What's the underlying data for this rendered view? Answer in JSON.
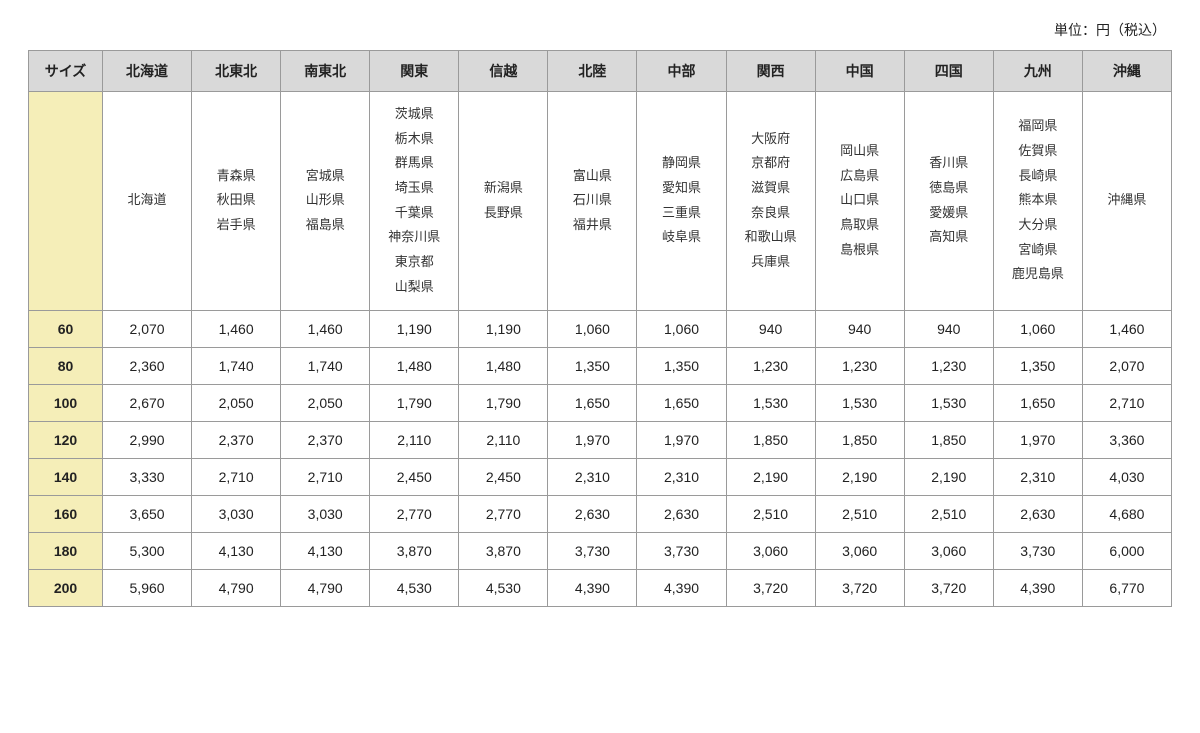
{
  "unit_label": "単位：円（税込）",
  "table": {
    "type": "table",
    "background_color": "#ffffff",
    "border_color": "#9a9a9a",
    "header_bg": "#d9d9d9",
    "size_col_bg": "#f5eeb8",
    "text_color": "#222222",
    "font_size_header": 14,
    "font_size_body": 14,
    "font_size_pref": 13,
    "columns": [
      {
        "key": "size",
        "label": "サイズ"
      },
      {
        "key": "hokkaido",
        "label": "北海道"
      },
      {
        "key": "n_tohoku",
        "label": "北東北"
      },
      {
        "key": "s_tohoku",
        "label": "南東北"
      },
      {
        "key": "kanto",
        "label": "関東"
      },
      {
        "key": "shinetsu",
        "label": "信越"
      },
      {
        "key": "hokuriku",
        "label": "北陸"
      },
      {
        "key": "chubu",
        "label": "中部"
      },
      {
        "key": "kansai",
        "label": "関西"
      },
      {
        "key": "chugoku",
        "label": "中国"
      },
      {
        "key": "shikoku",
        "label": "四国"
      },
      {
        "key": "kyushu",
        "label": "九州"
      },
      {
        "key": "okinawa",
        "label": "沖縄"
      }
    ],
    "prefectures": {
      "size": "",
      "hokkaido": [
        "北海道"
      ],
      "n_tohoku": [
        "青森県",
        "秋田県",
        "岩手県"
      ],
      "s_tohoku": [
        "宮城県",
        "山形県",
        "福島県"
      ],
      "kanto": [
        "茨城県",
        "栃木県",
        "群馬県",
        "埼玉県",
        "千葉県",
        "神奈川県",
        "東京都",
        "山梨県"
      ],
      "shinetsu": [
        "新潟県",
        "長野県"
      ],
      "hokuriku": [
        "富山県",
        "石川県",
        "福井県"
      ],
      "chubu": [
        "静岡県",
        "愛知県",
        "三重県",
        "岐阜県"
      ],
      "kansai": [
        "大阪府",
        "京都府",
        "滋賀県",
        "奈良県",
        "和歌山県",
        "兵庫県"
      ],
      "chugoku": [
        "岡山県",
        "広島県",
        "山口県",
        "鳥取県",
        "島根県"
      ],
      "shikoku": [
        "香川県",
        "徳島県",
        "愛媛県",
        "高知県"
      ],
      "kyushu": [
        "福岡県",
        "佐賀県",
        "長崎県",
        "熊本県",
        "大分県",
        "宮崎県",
        "鹿児島県"
      ],
      "okinawa": [
        "沖縄県"
      ]
    },
    "sizes": [
      "60",
      "80",
      "100",
      "120",
      "140",
      "160",
      "180",
      "200"
    ],
    "prices": [
      [
        "2,070",
        "1,460",
        "1,460",
        "1,190",
        "1,190",
        "1,060",
        "1,060",
        "940",
        "940",
        "940",
        "1,060",
        "1,460"
      ],
      [
        "2,360",
        "1,740",
        "1,740",
        "1,480",
        "1,480",
        "1,350",
        "1,350",
        "1,230",
        "1,230",
        "1,230",
        "1,350",
        "2,070"
      ],
      [
        "2,670",
        "2,050",
        "2,050",
        "1,790",
        "1,790",
        "1,650",
        "1,650",
        "1,530",
        "1,530",
        "1,530",
        "1,650",
        "2,710"
      ],
      [
        "2,990",
        "2,370",
        "2,370",
        "2,110",
        "2,110",
        "1,970",
        "1,970",
        "1,850",
        "1,850",
        "1,850",
        "1,970",
        "3,360"
      ],
      [
        "3,330",
        "2,710",
        "2,710",
        "2,450",
        "2,450",
        "2,310",
        "2,310",
        "2,190",
        "2,190",
        "2,190",
        "2,310",
        "4,030"
      ],
      [
        "3,650",
        "3,030",
        "3,030",
        "2,770",
        "2,770",
        "2,630",
        "2,630",
        "2,510",
        "2,510",
        "2,510",
        "2,630",
        "4,680"
      ],
      [
        "5,300",
        "4,130",
        "4,130",
        "3,870",
        "3,870",
        "3,730",
        "3,730",
        "3,060",
        "3,060",
        "3,060",
        "3,730",
        "6,000"
      ],
      [
        "5,960",
        "4,790",
        "4,790",
        "4,530",
        "4,530",
        "4,390",
        "4,390",
        "3,720",
        "3,720",
        "3,720",
        "4,390",
        "6,770"
      ]
    ]
  }
}
